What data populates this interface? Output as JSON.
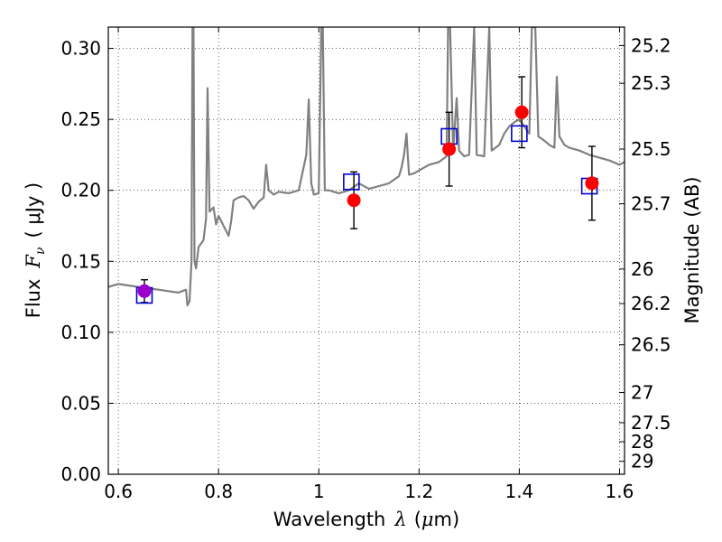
{
  "chart_data": {
    "type": "scatter",
    "title": "",
    "xlabel": {
      "prefix": "Wavelength",
      "symbol": "λ",
      "unit_open": "(",
      "unit_mu": "μ",
      "unit_rest": "m)"
    },
    "ylabel": {
      "prefix": "Flux",
      "symbol": "F",
      "subscript": "ν",
      "unit": "( μJy )"
    },
    "ylabel_right": "Magnitude (AB)",
    "xlim": [
      0.58,
      1.61
    ],
    "ylim": [
      0.0,
      0.315
    ],
    "grid": true,
    "x_ticks": [
      {
        "value": 0.6,
        "label": "0.6"
      },
      {
        "value": 0.8,
        "label": "0.8"
      },
      {
        "value": 1.0,
        "label": "1"
      },
      {
        "value": 1.2,
        "label": "1.2"
      },
      {
        "value": 1.4,
        "label": "1.4"
      },
      {
        "value": 1.6,
        "label": "1.6"
      }
    ],
    "y_ticks": [
      {
        "value": 0.0,
        "label": "0.00"
      },
      {
        "value": 0.05,
        "label": "0.05"
      },
      {
        "value": 0.1,
        "label": "0.10"
      },
      {
        "value": 0.15,
        "label": "0.15"
      },
      {
        "value": 0.2,
        "label": "0.20"
      },
      {
        "value": 0.25,
        "label": "0.25"
      },
      {
        "value": 0.3,
        "label": "0.30"
      }
    ],
    "magnitude_ticks": [
      "25.2",
      "25.3",
      "25.5",
      "25.7",
      "26",
      "26.2",
      "26.5",
      "27",
      "27.5",
      "28",
      "29"
    ],
    "model_color": "#808080",
    "model_spectrum": [
      [
        0.58,
        0.132
      ],
      [
        0.6,
        0.134
      ],
      [
        0.62,
        0.133
      ],
      [
        0.64,
        0.132
      ],
      [
        0.66,
        0.131
      ],
      [
        0.68,
        0.13
      ],
      [
        0.7,
        0.129
      ],
      [
        0.72,
        0.128
      ],
      [
        0.735,
        0.13
      ],
      [
        0.738,
        0.119
      ],
      [
        0.742,
        0.122
      ],
      [
        0.746,
        0.15
      ],
      [
        0.748,
        0.315
      ],
      [
        0.75,
        0.315
      ],
      [
        0.752,
        0.15
      ],
      [
        0.755,
        0.145
      ],
      [
        0.76,
        0.16
      ],
      [
        0.77,
        0.165
      ],
      [
        0.775,
        0.18
      ],
      [
        0.778,
        0.272
      ],
      [
        0.782,
        0.185
      ],
      [
        0.79,
        0.188
      ],
      [
        0.795,
        0.176
      ],
      [
        0.8,
        0.182
      ],
      [
        0.81,
        0.175
      ],
      [
        0.82,
        0.168
      ],
      [
        0.825,
        0.178
      ],
      [
        0.83,
        0.193
      ],
      [
        0.84,
        0.195
      ],
      [
        0.85,
        0.196
      ],
      [
        0.86,
        0.193
      ],
      [
        0.87,
        0.187
      ],
      [
        0.88,
        0.192
      ],
      [
        0.89,
        0.195
      ],
      [
        0.895,
        0.218
      ],
      [
        0.9,
        0.2
      ],
      [
        0.91,
        0.197
      ],
      [
        0.92,
        0.199
      ],
      [
        0.94,
        0.198
      ],
      [
        0.96,
        0.2
      ],
      [
        0.975,
        0.225
      ],
      [
        0.98,
        0.264
      ],
      [
        0.985,
        0.205
      ],
      [
        0.99,
        0.197
      ],
      [
        1.0,
        0.198
      ],
      [
        1.005,
        0.315
      ],
      [
        1.008,
        0.315
      ],
      [
        1.012,
        0.2
      ],
      [
        1.02,
        0.2
      ],
      [
        1.04,
        0.198
      ],
      [
        1.06,
        0.2
      ],
      [
        1.08,
        0.205
      ],
      [
        1.1,
        0.201
      ],
      [
        1.12,
        0.203
      ],
      [
        1.14,
        0.205
      ],
      [
        1.16,
        0.21
      ],
      [
        1.165,
        0.216
      ],
      [
        1.17,
        0.225
      ],
      [
        1.175,
        0.24
      ],
      [
        1.18,
        0.211
      ],
      [
        1.19,
        0.212
      ],
      [
        1.2,
        0.214
      ],
      [
        1.22,
        0.218
      ],
      [
        1.24,
        0.22
      ],
      [
        1.255,
        0.224
      ],
      [
        1.258,
        0.315
      ],
      [
        1.262,
        0.315
      ],
      [
        1.268,
        0.228
      ],
      [
        1.275,
        0.265
      ],
      [
        1.28,
        0.228
      ],
      [
        1.29,
        0.224
      ],
      [
        1.3,
        0.225
      ],
      [
        1.31,
        0.315
      ],
      [
        1.315,
        0.225
      ],
      [
        1.33,
        0.224
      ],
      [
        1.34,
        0.315
      ],
      [
        1.345,
        0.228
      ],
      [
        1.36,
        0.232
      ],
      [
        1.37,
        0.24
      ],
      [
        1.38,
        0.245
      ],
      [
        1.39,
        0.248
      ],
      [
        1.4,
        0.25
      ],
      [
        1.41,
        0.245
      ],
      [
        1.42,
        0.24
      ],
      [
        1.425,
        0.315
      ],
      [
        1.432,
        0.315
      ],
      [
        1.438,
        0.238
      ],
      [
        1.45,
        0.235
      ],
      [
        1.46,
        0.232
      ],
      [
        1.47,
        0.23
      ],
      [
        1.475,
        0.28
      ],
      [
        1.48,
        0.238
      ],
      [
        1.49,
        0.232
      ],
      [
        1.5,
        0.23
      ],
      [
        1.52,
        0.228
      ],
      [
        1.54,
        0.225
      ],
      [
        1.56,
        0.223
      ],
      [
        1.58,
        0.221
      ],
      [
        1.6,
        0.218
      ],
      [
        1.61,
        0.22
      ]
    ],
    "observed": [
      {
        "x": 0.652,
        "y": 0.129,
        "yerr": 0.008,
        "color": "#9900cc"
      },
      {
        "x": 1.07,
        "y": 0.193,
        "yerr": 0.02,
        "color": "#ff0000"
      },
      {
        "x": 1.26,
        "y": 0.229,
        "yerr": 0.026,
        "color": "#ff0000"
      },
      {
        "x": 1.405,
        "y": 0.255,
        "yerr": 0.025,
        "color": "#ff0000"
      },
      {
        "x": 1.545,
        "y": 0.205,
        "yerr": 0.026,
        "color": "#ff0000"
      }
    ],
    "model_photometry": [
      {
        "x": 0.652,
        "y": 0.126,
        "color": "#0000cc"
      },
      {
        "x": 1.065,
        "y": 0.206,
        "color": "#0000cc"
      },
      {
        "x": 1.26,
        "y": 0.238,
        "color": "#0000cc"
      },
      {
        "x": 1.4,
        "y": 0.24,
        "color": "#0000cc"
      },
      {
        "x": 1.54,
        "y": 0.203,
        "color": "#0000cc"
      }
    ]
  }
}
